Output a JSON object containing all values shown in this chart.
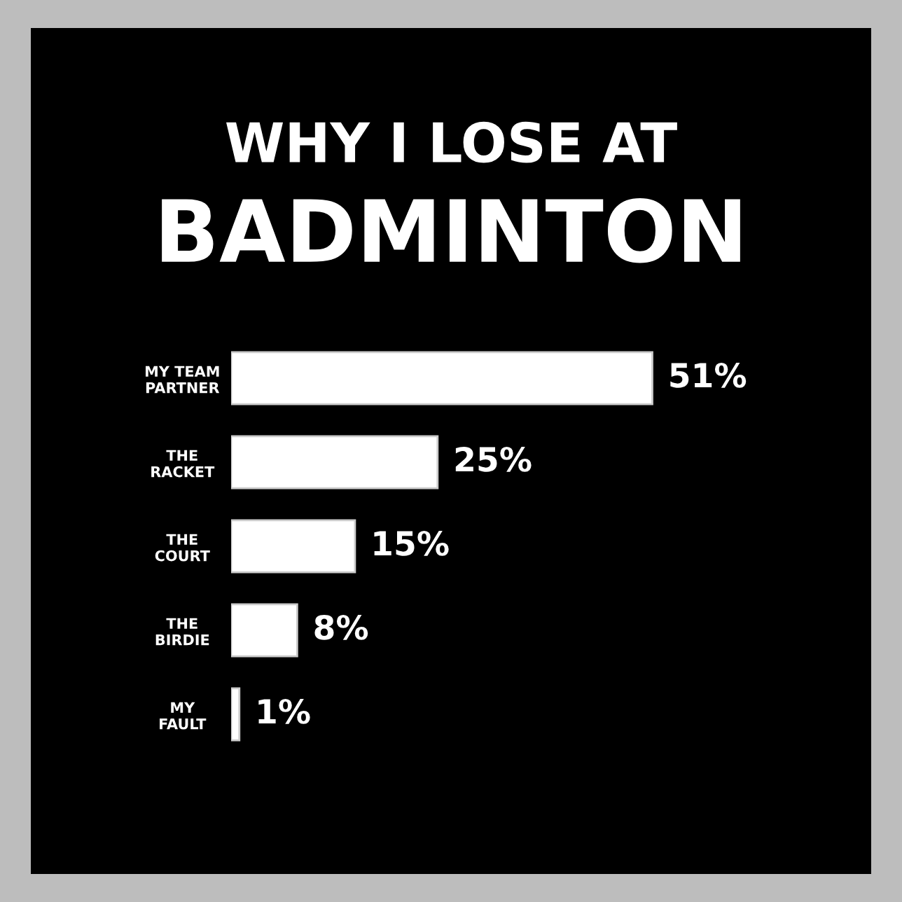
{
  "chart_data": {
    "type": "bar",
    "orientation": "horizontal",
    "title": "WHY I LOSE AT",
    "subtitle": "BADMINTON",
    "categories": [
      "MY TEAM\nPARTNER",
      "THE\nRACKET",
      "THE\nCOURT",
      "THE\nBIRDIE",
      "MY\nFAULT"
    ],
    "values": [
      51,
      25,
      15,
      8,
      1
    ],
    "value_labels": [
      "51%",
      "25%",
      "15%",
      "8%",
      "1%"
    ],
    "color": "#ffffff",
    "tick_labels": "y",
    "grid": false,
    "legend": false
  }
}
